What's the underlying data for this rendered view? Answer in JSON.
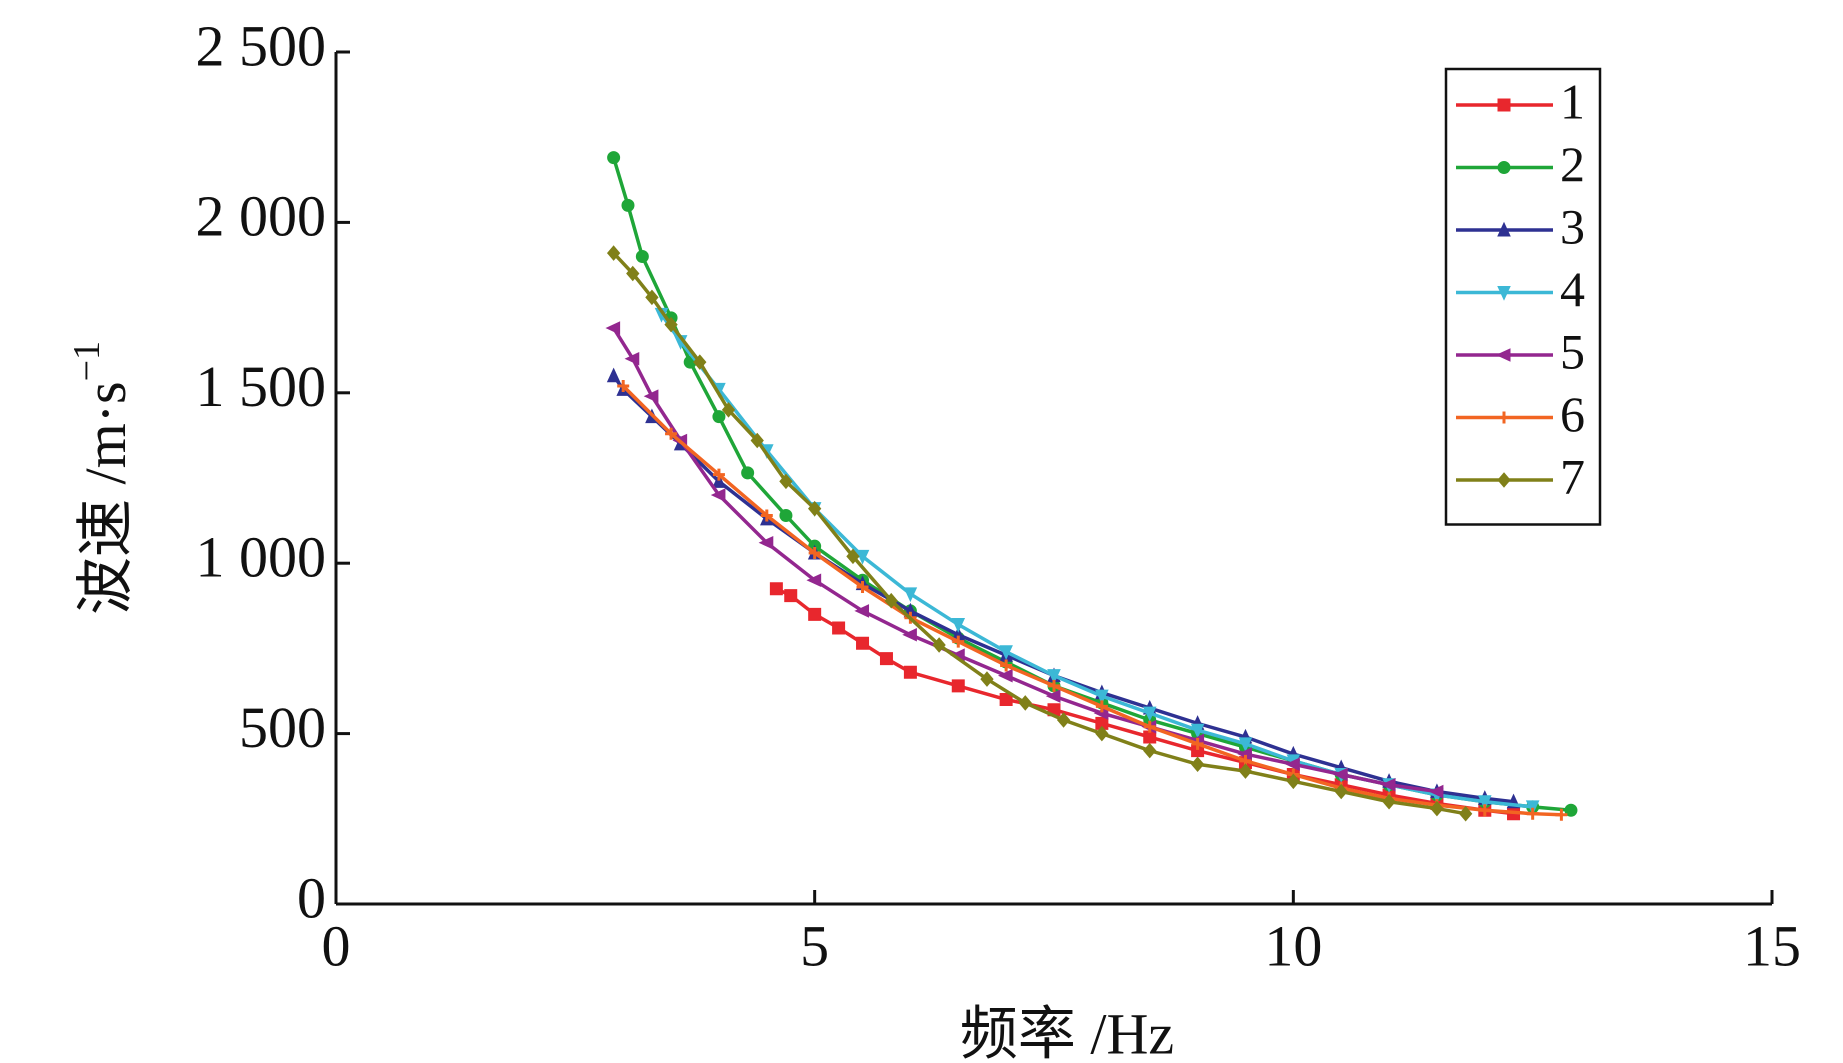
{
  "chart_data": {
    "type": "line",
    "xlabel": "频率 /Hz",
    "ylabel": "波速 /m·s",
    "ylabel_superscript": "−1",
    "xlim": [
      0,
      15
    ],
    "xticks": [
      0,
      5,
      10,
      15
    ],
    "ylim": [
      0,
      2500
    ],
    "yticks": [
      {
        "value": 0,
        "label": "0"
      },
      {
        "value": 500,
        "label": "500"
      },
      {
        "value": 1000,
        "label": "1 000"
      },
      {
        "value": 1500,
        "label": "1 500"
      },
      {
        "value": 2000,
        "label": "2 000"
      },
      {
        "value": 2500,
        "label": "2 500"
      }
    ],
    "legend": "upper-right",
    "series": [
      {
        "name": "1",
        "color": "#e8272d",
        "marker": "square",
        "x": [
          4.6,
          4.75,
          5.0,
          5.25,
          5.5,
          5.75,
          6.0,
          6.5,
          7.0,
          7.5,
          8.0,
          8.5,
          9.0,
          9.5,
          10.0,
          10.5,
          11.0,
          11.5,
          12.0,
          12.3
        ],
        "values": [
          925,
          905,
          850,
          810,
          765,
          720,
          680,
          640,
          600,
          570,
          530,
          490,
          450,
          415,
          380,
          350,
          320,
          295,
          275,
          265
        ]
      },
      {
        "name": "2",
        "color": "#1fa638",
        "marker": "circle",
        "x": [
          2.9,
          3.05,
          3.2,
          3.5,
          3.7,
          4.0,
          4.3,
          4.7,
          5.0,
          5.5,
          6.0,
          6.5,
          7.0,
          7.5,
          8.0,
          8.5,
          9.0,
          9.5,
          10.0,
          10.5,
          11.0,
          11.5,
          12.0,
          12.5,
          12.9
        ],
        "values": [
          2190,
          2050,
          1900,
          1720,
          1590,
          1430,
          1265,
          1140,
          1050,
          950,
          860,
          780,
          710,
          640,
          590,
          540,
          500,
          460,
          420,
          380,
          350,
          320,
          300,
          285,
          275
        ]
      },
      {
        "name": "3",
        "color": "#2e3192",
        "marker": "triangle",
        "x": [
          2.9,
          3.0,
          3.3,
          3.6,
          4.0,
          4.5,
          5.0,
          5.5,
          6.0,
          6.5,
          7.0,
          7.5,
          8.0,
          8.5,
          9.0,
          9.5,
          10.0,
          10.5,
          11.0,
          11.5,
          12.0,
          12.3
        ],
        "values": [
          1550,
          1510,
          1430,
          1350,
          1240,
          1130,
          1030,
          940,
          860,
          790,
          730,
          670,
          620,
          575,
          530,
          490,
          440,
          400,
          360,
          330,
          310,
          300
        ]
      },
      {
        "name": "4",
        "color": "#3cb8d6",
        "marker": "triangle-down",
        "x": [
          3.4,
          3.6,
          4.0,
          4.5,
          5.0,
          5.5,
          6.0,
          6.5,
          7.0,
          7.5,
          8.0,
          8.5,
          9.0,
          9.5,
          10.0,
          10.5,
          11.0,
          11.5,
          12.0,
          12.5
        ],
        "values": [
          1730,
          1650,
          1510,
          1330,
          1160,
          1020,
          910,
          820,
          740,
          670,
          610,
          560,
          510,
          470,
          420,
          380,
          350,
          320,
          300,
          285
        ]
      },
      {
        "name": "5",
        "color": "#93278f",
        "marker": "triangle-left",
        "x": [
          2.9,
          3.1,
          3.3,
          3.6,
          4.0,
          4.5,
          5.0,
          5.5,
          6.0,
          6.5,
          7.0,
          7.5,
          8.0,
          8.5,
          9.0,
          9.5,
          10.0,
          10.5,
          11.0,
          11.5
        ],
        "values": [
          1690,
          1600,
          1490,
          1360,
          1200,
          1060,
          950,
          860,
          790,
          730,
          670,
          610,
          560,
          520,
          480,
          440,
          410,
          380,
          350,
          330
        ]
      },
      {
        "name": "6",
        "color": "#f26522",
        "marker": "plus",
        "x": [
          3.0,
          3.5,
          4.0,
          4.5,
          5.0,
          5.5,
          6.0,
          6.5,
          7.0,
          7.5,
          8.0,
          8.5,
          9.0,
          9.5,
          10.0,
          10.5,
          11.0,
          11.5,
          12.0,
          12.5,
          12.8
        ],
        "values": [
          1520,
          1380,
          1260,
          1140,
          1030,
          930,
          840,
          770,
          700,
          640,
          580,
          520,
          470,
          420,
          380,
          340,
          310,
          290,
          275,
          265,
          262
        ]
      },
      {
        "name": "7",
        "color": "#808019",
        "marker": "diamond",
        "x": [
          2.9,
          3.1,
          3.3,
          3.5,
          3.8,
          4.1,
          4.4,
          4.7,
          5.0,
          5.4,
          5.8,
          6.3,
          6.8,
          7.2,
          7.6,
          8.0,
          8.5,
          9.0,
          9.5,
          10.0,
          10.5,
          11.0,
          11.5,
          11.8
        ],
        "values": [
          1910,
          1850,
          1780,
          1700,
          1590,
          1450,
          1360,
          1240,
          1160,
          1020,
          890,
          760,
          660,
          590,
          540,
          500,
          450,
          410,
          390,
          360,
          330,
          300,
          280,
          265
        ]
      }
    ]
  }
}
